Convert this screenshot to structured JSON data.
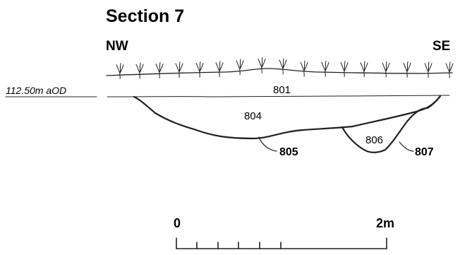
{
  "title": "Section 7",
  "orientation": {
    "left": "NW",
    "right": "SE"
  },
  "datum_label": "112.50m aOD",
  "contexts": [
    {
      "id": "ctx-801",
      "label": "801"
    },
    {
      "id": "ctx-804",
      "label": "804"
    },
    {
      "id": "ctx-806",
      "label": "806"
    }
  ],
  "cuts": [
    {
      "id": "cut-805",
      "label": "805"
    },
    {
      "id": "cut-807",
      "label": "807"
    }
  ],
  "scale_bar": {
    "start_label": "0",
    "end_label": "2m"
  }
}
